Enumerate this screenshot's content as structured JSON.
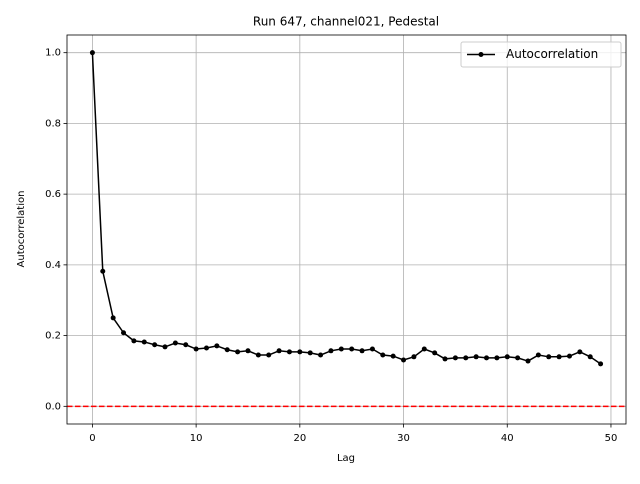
{
  "chart_data": {
    "type": "line",
    "title": "Run 647, channel021, Pedestal",
    "x_label": "Lag",
    "y_label": "Autocorrelation",
    "x": [
      0,
      1,
      2,
      3,
      4,
      5,
      6,
      7,
      8,
      9,
      10,
      11,
      12,
      13,
      14,
      15,
      16,
      17,
      18,
      19,
      20,
      21,
      22,
      23,
      24,
      25,
      26,
      27,
      28,
      29,
      30,
      31,
      32,
      33,
      34,
      35,
      36,
      37,
      38,
      39,
      40,
      41,
      42,
      43,
      44,
      45,
      46,
      47,
      48,
      49
    ],
    "series": [
      {
        "name": "Autocorrelation",
        "color": "#000000",
        "values": [
          1.0,
          0.382,
          0.25,
          0.208,
          0.185,
          0.182,
          0.174,
          0.168,
          0.179,
          0.174,
          0.162,
          0.165,
          0.171,
          0.16,
          0.154,
          0.157,
          0.145,
          0.145,
          0.157,
          0.154,
          0.154,
          0.151,
          0.145,
          0.157,
          0.162,
          0.162,
          0.157,
          0.162,
          0.145,
          0.142,
          0.131,
          0.14,
          0.162,
          0.151,
          0.134,
          0.137,
          0.137,
          0.14,
          0.137,
          0.137,
          0.14,
          0.137,
          0.128,
          0.145,
          0.14,
          0.14,
          0.142,
          0.154,
          0.14,
          0.12
        ]
      }
    ],
    "reference_line": {
      "value": 0,
      "color": "#ff0000"
    },
    "xlim": [
      -2.45,
      51.45
    ],
    "ylim": [
      -0.05,
      1.05
    ],
    "xticks": [
      0,
      10,
      20,
      30,
      40,
      50
    ],
    "yticks": [
      {
        "value": 0,
        "label": "0.0"
      },
      0.2,
      0.4,
      0.6,
      0.8,
      {
        "value": 1,
        "label": "1.0"
      }
    ],
    "grid": true,
    "legend": "upper right"
  }
}
